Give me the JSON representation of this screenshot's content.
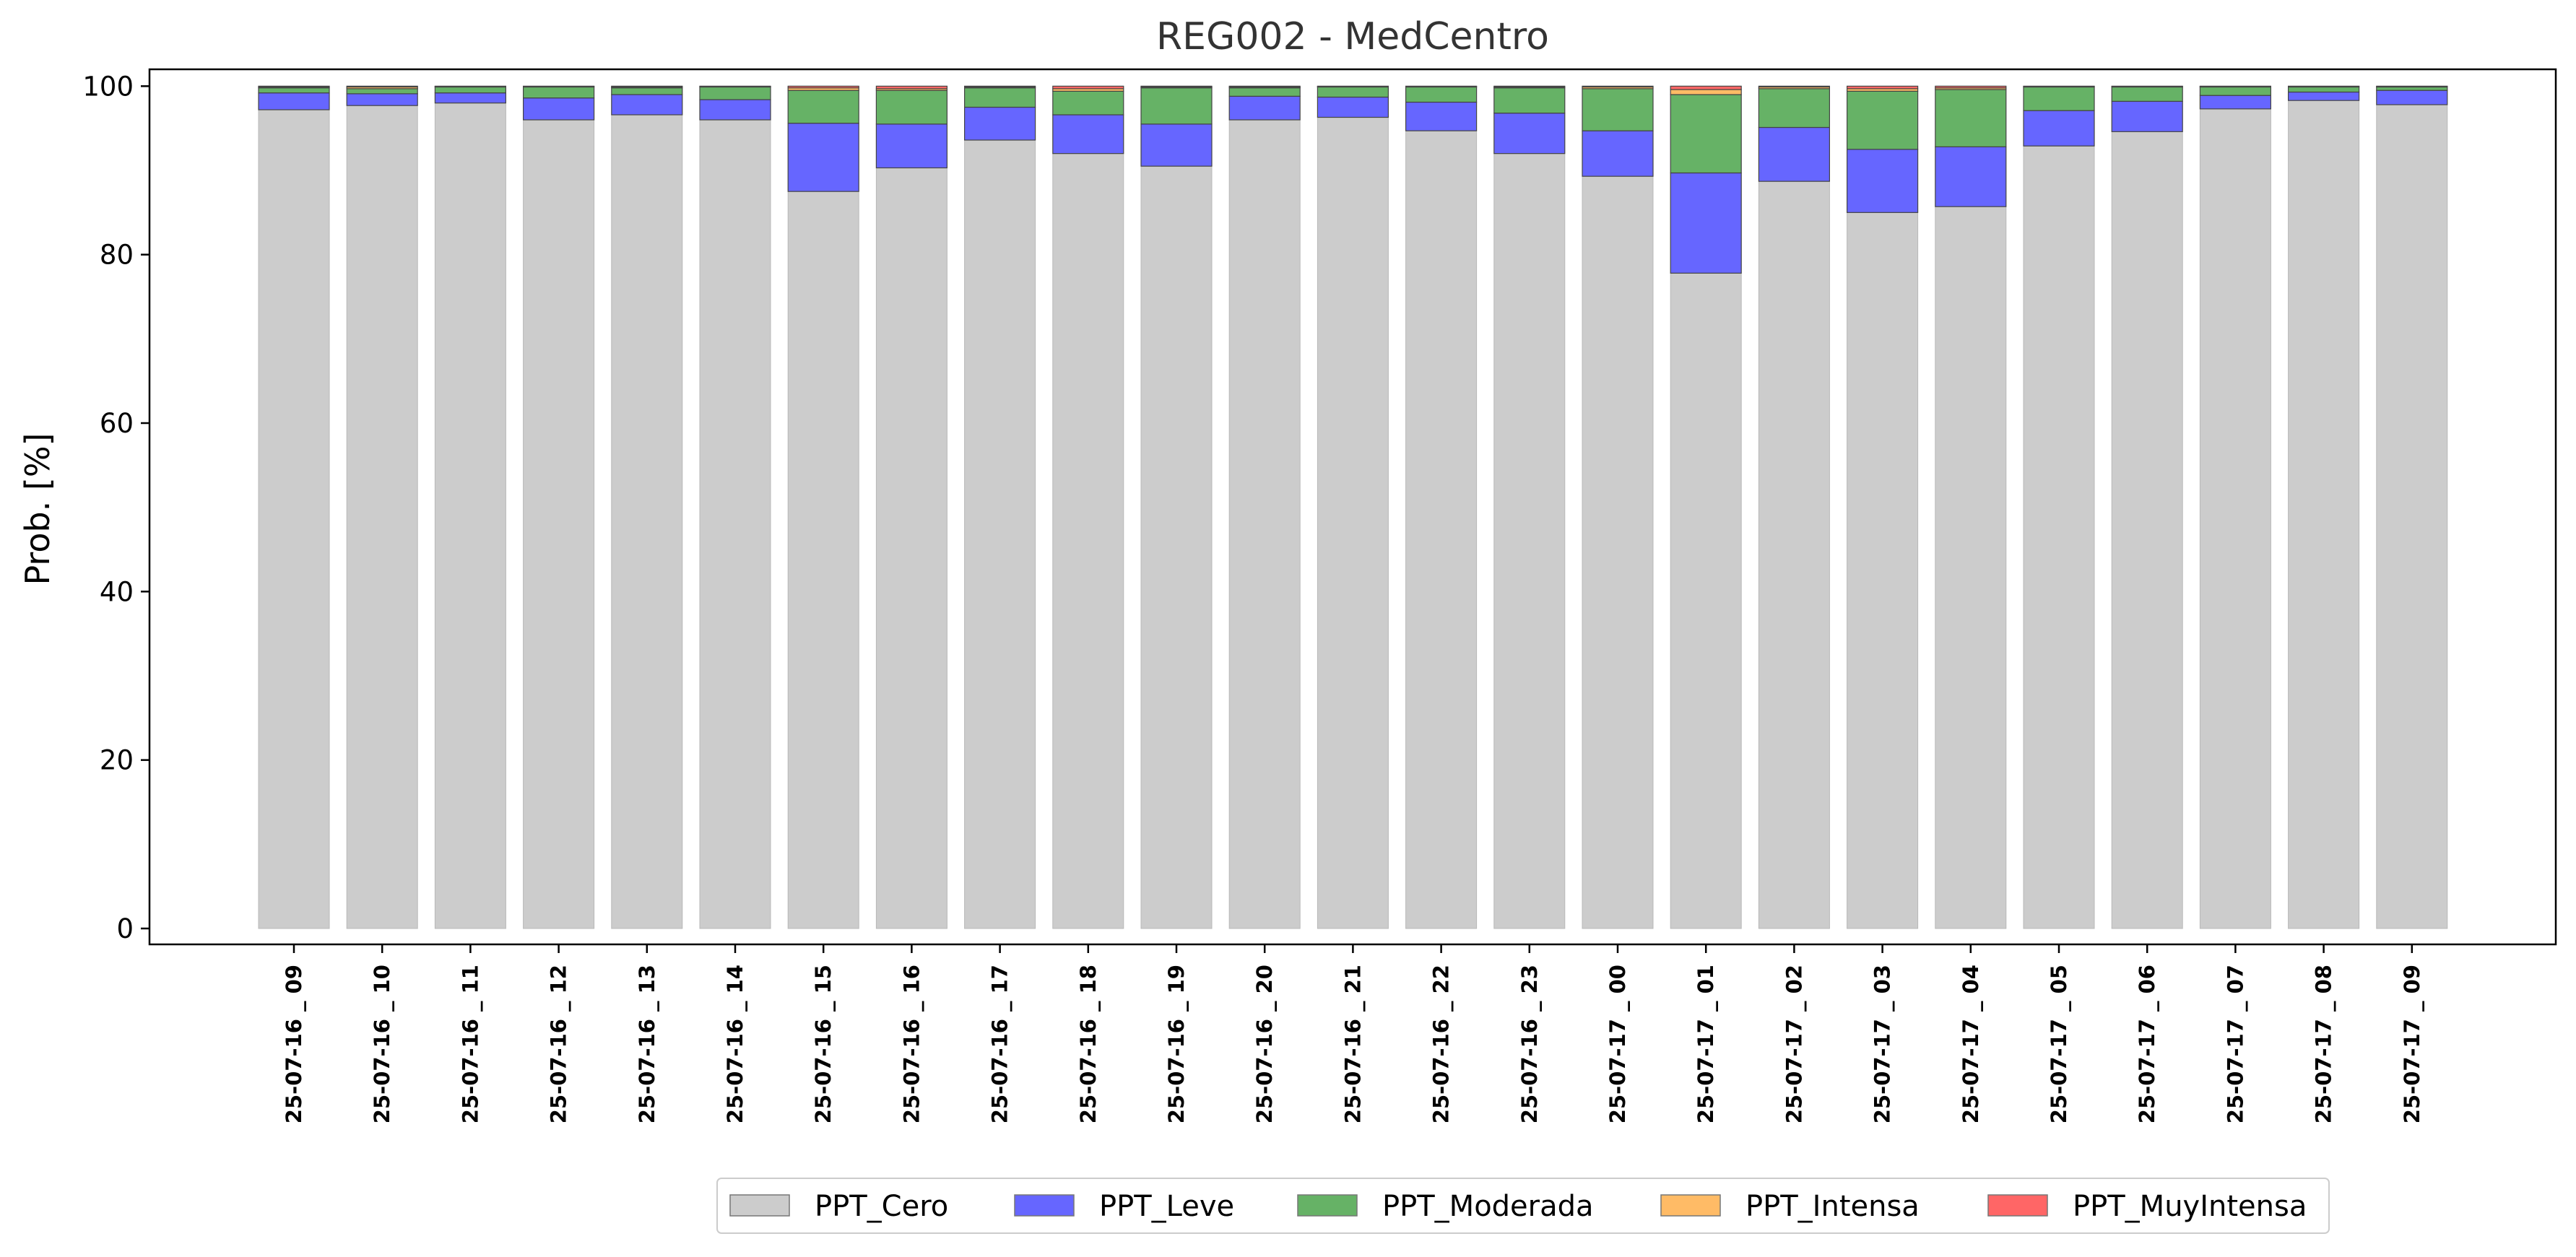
{
  "chart_data": {
    "type": "bar",
    "stacked": true,
    "title": "REG002 - MedCentro",
    "xlabel": "",
    "ylabel": "Prob. [%]",
    "ylim": [
      0,
      102
    ],
    "yticks": [
      0,
      20,
      40,
      60,
      80,
      100
    ],
    "grid": false,
    "legend_position": "bottom-center",
    "categories": [
      "25-07-16 _ 09",
      "25-07-16 _ 10",
      "25-07-16 _ 11",
      "25-07-16 _ 12",
      "25-07-16 _ 13",
      "25-07-16 _ 14",
      "25-07-16 _ 15",
      "25-07-16 _ 16",
      "25-07-16 _ 17",
      "25-07-16 _ 18",
      "25-07-16 _ 19",
      "25-07-16 _ 20",
      "25-07-16 _ 21",
      "25-07-16 _ 22",
      "25-07-16 _ 23",
      "25-07-17 _ 00",
      "25-07-17 _ 01",
      "25-07-17 _ 02",
      "25-07-17 _ 03",
      "25-07-17 _ 04",
      "25-07-17 _ 05",
      "25-07-17 _ 06",
      "25-07-17 _ 07",
      "25-07-17 _ 08",
      "25-07-17 _ 09"
    ],
    "series": [
      {
        "name": "PPT_Cero",
        "color": "#cccccc",
        "values": [
          97.2,
          97.7,
          98.0,
          96.0,
          96.6,
          96.0,
          87.5,
          90.3,
          93.6,
          92.0,
          90.5,
          96.0,
          96.3,
          94.7,
          92.0,
          89.3,
          77.8,
          88.7,
          85.0,
          85.7,
          92.9,
          94.6,
          97.3,
          98.3,
          97.8
        ]
      },
      {
        "name": "PPT_Leve",
        "color": "#6666ff",
        "values": [
          2.0,
          1.4,
          1.2,
          2.6,
          2.4,
          2.4,
          8.1,
          5.2,
          3.9,
          4.6,
          5.0,
          2.8,
          2.4,
          3.4,
          4.8,
          5.4,
          11.9,
          6.4,
          7.5,
          7.1,
          4.2,
          3.6,
          1.6,
          1.0,
          1.7
        ]
      },
      {
        "name": "PPT_Moderada",
        "color": "#66b266",
        "values": [
          0.6,
          0.6,
          0.7,
          1.3,
          0.8,
          1.5,
          3.9,
          4.0,
          2.3,
          2.8,
          4.3,
          1.0,
          1.2,
          1.8,
          3.0,
          5.0,
          9.3,
          4.6,
          6.9,
          6.8,
          2.8,
          1.7,
          1.0,
          0.6,
          0.4
        ]
      },
      {
        "name": "PPT_Intensa",
        "color": "#ffbb66",
        "values": [
          0.1,
          0.2,
          0.05,
          0.05,
          0.1,
          0.05,
          0.3,
          0.2,
          0.1,
          0.3,
          0.1,
          0.1,
          0.05,
          0.05,
          0.1,
          0.2,
          0.6,
          0.2,
          0.3,
          0.2,
          0.05,
          0.05,
          0.05,
          0.05,
          0.05
        ]
      },
      {
        "name": "PPT_MuyIntensa",
        "color": "#ff6666",
        "values": [
          0.1,
          0.1,
          0.05,
          0.05,
          0.1,
          0.05,
          0.2,
          0.3,
          0.1,
          0.3,
          0.1,
          0.1,
          0.05,
          0.05,
          0.1,
          0.1,
          0.4,
          0.1,
          0.3,
          0.2,
          0.05,
          0.05,
          0.05,
          0.05,
          0.05
        ]
      }
    ]
  }
}
